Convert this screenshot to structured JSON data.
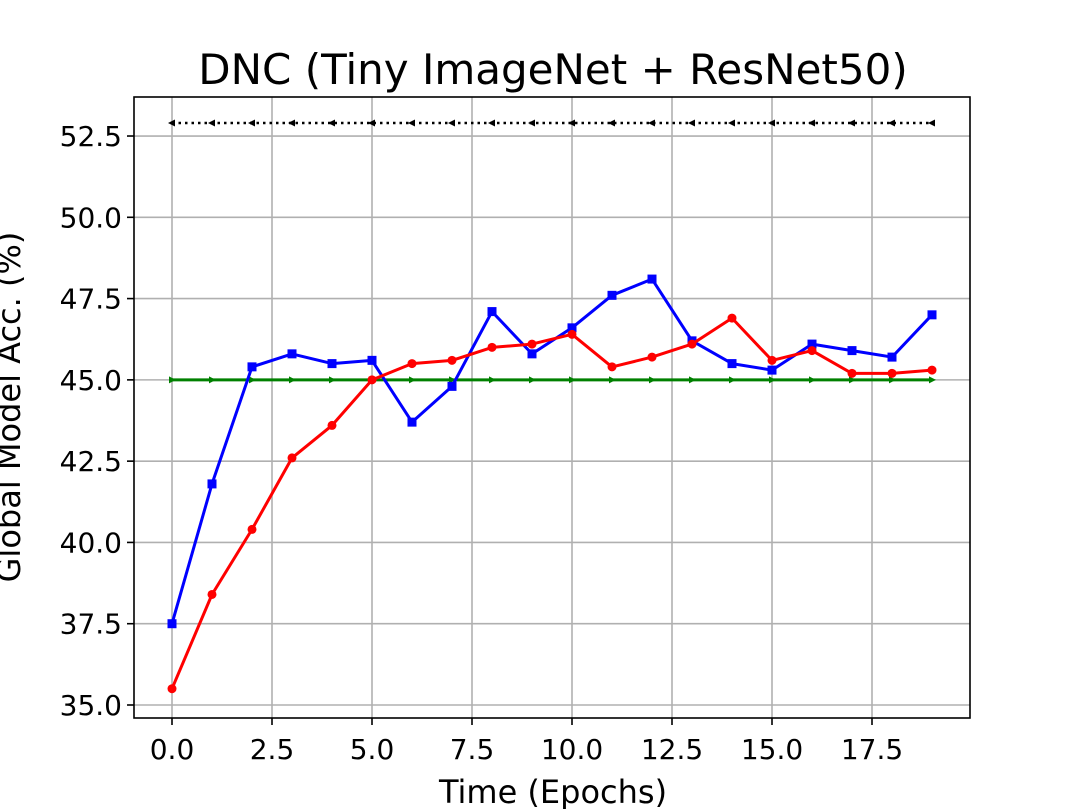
{
  "chart_data": {
    "type": "line",
    "title": "DNC (Tiny ImageNet + ResNet50)",
    "xlabel": "Time (Epochs)",
    "ylabel": "Global Model Acc. (%)",
    "xlim": [
      -0.95,
      19.95
    ],
    "ylim": [
      34.6,
      53.7
    ],
    "xticks": [
      0.0,
      2.5,
      5.0,
      7.5,
      10.0,
      12.5,
      15.0,
      17.5
    ],
    "xtick_labels": [
      "0.0",
      "2.5",
      "5.0",
      "7.5",
      "10.0",
      "12.5",
      "15.0",
      "17.5"
    ],
    "yticks": [
      35.0,
      37.5,
      40.0,
      42.5,
      45.0,
      47.5,
      50.0,
      52.5
    ],
    "ytick_labels": [
      "35.0",
      "37.5",
      "40.0",
      "42.5",
      "45.0",
      "47.5",
      "50.0",
      "52.5"
    ],
    "grid": true,
    "x": [
      0,
      1,
      2,
      3,
      4,
      5,
      6,
      7,
      8,
      9,
      10,
      11,
      12,
      13,
      14,
      15,
      16,
      17,
      18,
      19
    ],
    "series": [
      {
        "color": "#000000",
        "style": "dotted",
        "marker": "tri-left",
        "values": [
          52.9,
          52.9,
          52.9,
          52.9,
          52.9,
          52.9,
          52.9,
          52.9,
          52.9,
          52.9,
          52.9,
          52.9,
          52.9,
          52.9,
          52.9,
          52.9,
          52.9,
          52.9,
          52.9,
          52.9
        ]
      },
      {
        "color": "#008000",
        "style": "solid",
        "marker": "tri-right",
        "values": [
          45.0,
          45.0,
          45.0,
          45.0,
          45.0,
          45.0,
          45.0,
          45.0,
          45.0,
          45.0,
          45.0,
          45.0,
          45.0,
          45.0,
          45.0,
          45.0,
          45.0,
          45.0,
          45.0,
          45.0
        ]
      },
      {
        "color": "#0000ff",
        "style": "solid",
        "marker": "square",
        "values": [
          37.5,
          41.8,
          45.4,
          45.8,
          45.5,
          45.6,
          43.7,
          44.8,
          47.1,
          45.8,
          46.6,
          47.6,
          48.1,
          46.2,
          45.5,
          45.3,
          46.1,
          45.9,
          45.7,
          47.0
        ]
      },
      {
        "color": "#ff0000",
        "style": "solid",
        "marker": "circle",
        "values": [
          35.5,
          38.4,
          40.4,
          42.6,
          43.6,
          45.0,
          45.5,
          45.6,
          46.0,
          46.1,
          46.4,
          45.4,
          45.7,
          46.1,
          46.9,
          45.6,
          45.9,
          45.2,
          45.2,
          45.3
        ]
      }
    ]
  }
}
